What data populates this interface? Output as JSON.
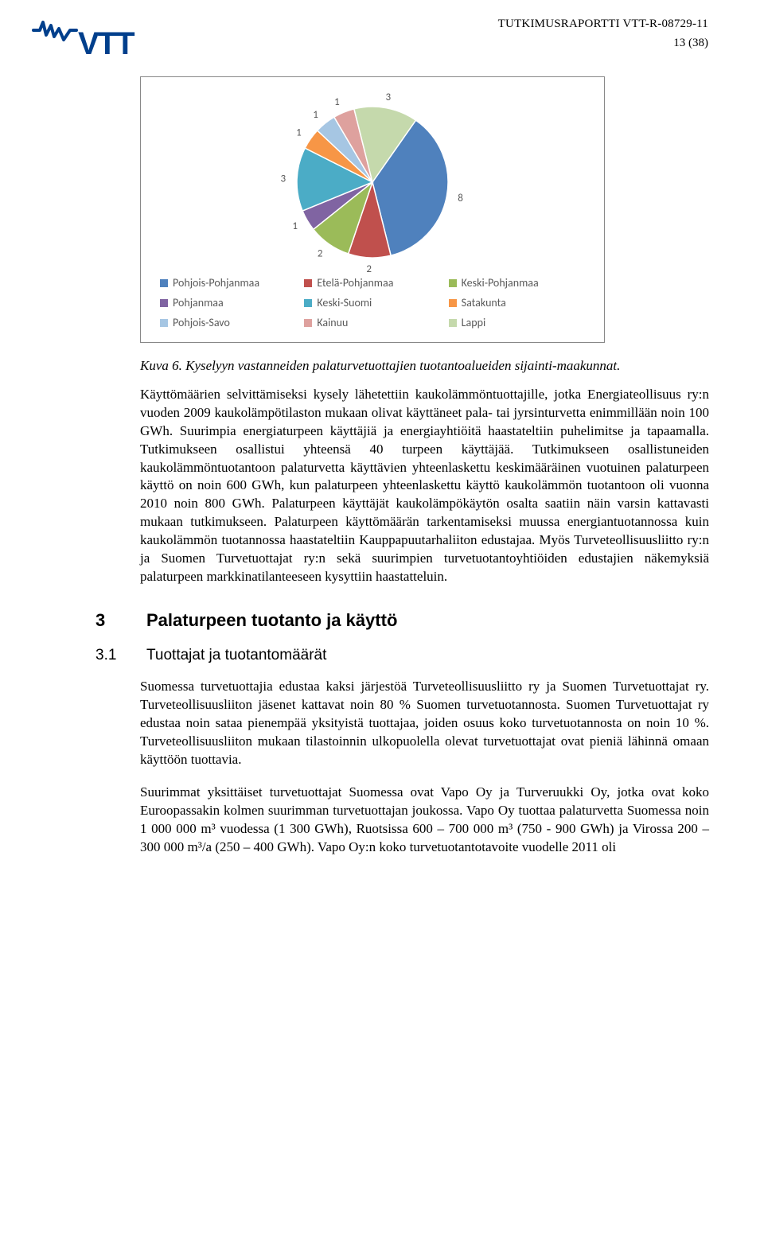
{
  "header": {
    "report_id": "TUTKIMUSRAPORTTI VTT-R-08729-11",
    "page_num": "13 (38)",
    "logo_text": "VTT",
    "logo_colors": {
      "icon": "#003f8c",
      "text": "#003f8c"
    }
  },
  "chart": {
    "type": "pie",
    "background_color": "#ffffff",
    "border_color": "#888888",
    "pie_radius": 95,
    "label_fontsize": 13,
    "label_color": "#595959",
    "legend_fontsize": 14,
    "legend_color": "#595959",
    "slices": [
      {
        "label": "Pohjois-Pohjanmaa",
        "value": 8,
        "color": "#4f81bd"
      },
      {
        "label": "Etelä-Pohjanmaa",
        "value": 2,
        "color": "#c0504d"
      },
      {
        "label": "Keski-Pohjanmaa",
        "value": 2,
        "color": "#9bbb59"
      },
      {
        "label": "Pohjanmaa",
        "value": 1,
        "color": "#8064a2"
      },
      {
        "label": "Keski-Suomi",
        "value": 3,
        "color": "#4bacc6"
      },
      {
        "label": "Satakunta",
        "value": 1,
        "color": "#f79646"
      },
      {
        "label": "Pohjois-Savo",
        "value": 1,
        "color": "#a6c6e3"
      },
      {
        "label": "Kainuu",
        "value": 1,
        "color": "#dea19e"
      },
      {
        "label": "Lappi",
        "value": 3,
        "color": "#c5d9ac"
      }
    ],
    "start_angle_deg": -55
  },
  "caption": "Kuva 6. Kyselyyn vastanneiden palaturvetuottajien tuotantoalueiden sijainti-maakunnat.",
  "body1": "Käyttömäärien selvittämiseksi kysely lähetettiin kaukolämmöntuottajille, jotka Energiateollisuus ry:n vuoden 2009 kaukolämpötilaston mukaan olivat käyttäneet pala- tai jyrsinturvetta enimmillään noin 100 GWh. Suurimpia energiaturpeen käyttäjiä ja energiayhtiöitä haastateltiin puhelimitse ja tapaamalla. Tutkimukseen osallistui yhteensä 40 turpeen käyttäjää. Tutkimukseen osallistuneiden kaukolämmöntuotantoon palaturvetta käyttävien yhteenlaskettu keskimääräinen vuotuinen palaturpeen käyttö on noin 600 GWh, kun palaturpeen yhteenlaskettu käyttö kaukolämmön tuotantoon oli vuonna 2010 noin 800 GWh. Palaturpeen käyttäjät kaukolämpökäytön osalta saatiin näin varsin kattavasti mukaan tutkimukseen. Palaturpeen käyttömäärän tarkentamiseksi muussa energiantuotannossa kuin kaukolämmön tuotannossa haastateltiin Kauppapuutarhaliiton edustajaa. Myös Turveteollisuusliitto ry:n ja Suomen Turvetuottajat ry:n sekä suurimpien turvetuotantoyhtiöiden edustajien näkemyksiä palaturpeen markkinatilanteeseen kysyttiin haastatteluin.",
  "section": {
    "number": "3",
    "title": "Palaturpeen tuotanto ja käyttö"
  },
  "subsection": {
    "number": "3.1",
    "title": "Tuottajat ja tuotantomäärät"
  },
  "body2": "Suomessa turvetuottajia edustaa kaksi järjestöä Turveteollisuusliitto ry ja Suomen Turvetuottajat ry. Turveteollisuusliiton jäsenet kattavat noin 80 % Suomen turvetuotannosta. Suomen Turvetuottajat ry edustaa noin sataa pienempää yksityistä tuottajaa, joiden osuus koko turvetuotannosta on noin 10 %. Turveteollisuusliiton mukaan tilastoinnin ulkopuolella olevat turvetuottajat ovat pieniä lähinnä omaan käyttöön tuottavia.",
  "body3": "Suurimmat yksittäiset turvetuottajat Suomessa ovat Vapo Oy ja Turveruukki Oy, jotka ovat koko Euroopassakin kolmen suurimman turvetuottajan joukossa. Vapo Oy tuottaa palaturvetta Suomessa noin 1 000 000 m³ vuodessa (1 300 GWh), Ruotsissa 600 – 700 000 m³ (750 - 900 GWh) ja Virossa 200 – 300 000 m³/a (250 – 400 GWh). Vapo Oy:n koko turvetuotantotavoite vuodelle 2011 oli"
}
